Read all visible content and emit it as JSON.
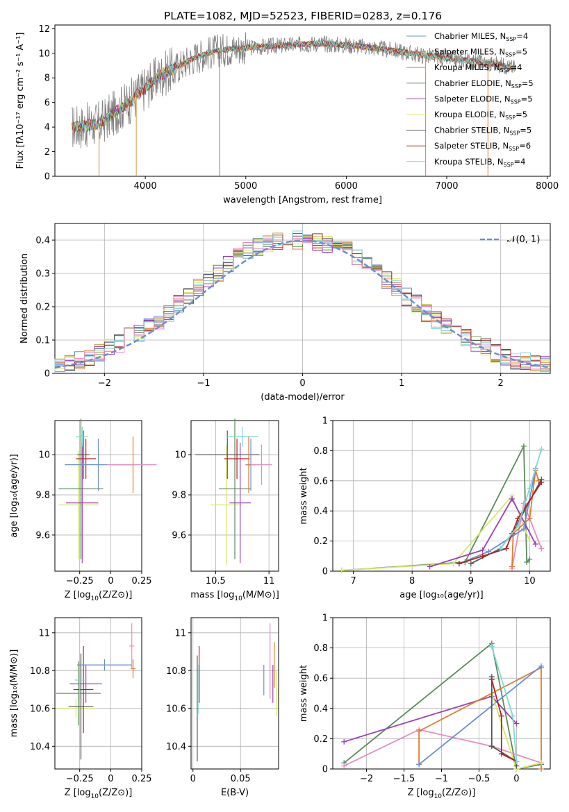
{
  "figure": {
    "title": "PLATE=1082, MJD=52523, FIBERID=0283, z=0.176"
  },
  "chart_data": [
    {
      "id": "spectrum",
      "type": "line",
      "xlabel": "wavelength [Angstrom, rest frame]",
      "ylabel": "Flux [fλ10⁻¹⁷ erg cm⁻² s⁻¹ A⁻¹]",
      "xlim": [
        3100,
        8030
      ],
      "ylim": [
        0,
        12.3
      ],
      "xticks": [
        4000,
        5000,
        6000,
        7000,
        8000
      ],
      "yticks": [
        0,
        2,
        4,
        6,
        8,
        10,
        12
      ],
      "grid": false,
      "legend_position": "top-right",
      "data_color": "#808080",
      "data_x": [
        3270,
        3400,
        3550,
        3700,
        3850,
        4000,
        4150,
        4300,
        4500,
        4700,
        4900,
        5100,
        5300,
        5500,
        5700,
        5900,
        6100,
        6300,
        6500,
        6700,
        6900,
        7100,
        7300,
        7500,
        7690
      ],
      "data_y": [
        4.0,
        4.1,
        4.3,
        5.2,
        6.1,
        7.2,
        8.2,
        8.8,
        9.7,
        10.2,
        10.4,
        10.5,
        10.6,
        10.7,
        10.8,
        10.7,
        10.6,
        10.4,
        10.2,
        9.9,
        9.7,
        9.5,
        9.3,
        9.1,
        8.8
      ],
      "series": [
        {
          "label_main": "Chabrier MILES, N",
          "label_sub": "SSP",
          "label_tail": "=4",
          "color": "#6a8fd0"
        },
        {
          "label_main": "Salpeter MILES, N",
          "label_sub": "SSP",
          "label_tail": "=5",
          "color": "#e07b2f"
        },
        {
          "label_main": "Kroupa MILES, N",
          "label_sub": "SSP",
          "label_tail": "=4",
          "color": "#d49a3a"
        },
        {
          "label_main": "Chabrier ELODIE, N",
          "label_sub": "SSP",
          "label_tail": "=5",
          "color": "#5a8a5a"
        },
        {
          "label_main": "Salpeter ELODIE, N",
          "label_sub": "SSP",
          "label_tail": "=5",
          "color": "#9a3fb8"
        },
        {
          "label_main": "Kroupa ELODIE, N",
          "label_sub": "SSP",
          "label_tail": "=5",
          "color": "#d8e86a"
        },
        {
          "label_main": "Chabrier STELIB, N",
          "label_sub": "SSP",
          "label_tail": "=5",
          "color": "#555555"
        },
        {
          "label_main": "Salpeter STELIB, N",
          "label_sub": "SSP",
          "label_tail": "=6",
          "color": "#b22222"
        },
        {
          "label_main": "Kroupa STELIB, N",
          "label_sub": "SSP",
          "label_tail": "=4",
          "color": "#7fd8d8"
        }
      ]
    },
    {
      "id": "residuals",
      "type": "histogram",
      "xlabel": "(data-model)/error",
      "ylabel": "Normed distribution",
      "xlim": [
        -2.5,
        2.5
      ],
      "ylim": [
        0,
        0.45
      ],
      "xticks": [
        -2,
        -1,
        0,
        1,
        2
      ],
      "yticks": [
        0.0,
        0.1,
        0.2,
        0.3,
        0.4
      ],
      "grid": true,
      "legend_position": "top-right",
      "reference_label": "𝒩(0, 1)",
      "reference_color": "#6a8fd0",
      "bin_width": 0.1,
      "envelope": [
        0.02,
        0.03,
        0.04,
        0.05,
        0.06,
        0.08,
        0.09,
        0.11,
        0.12,
        0.14,
        0.16,
        0.18,
        0.21,
        0.23,
        0.26,
        0.28,
        0.3,
        0.33,
        0.35,
        0.37,
        0.38,
        0.39,
        0.395,
        0.4,
        0.4,
        0.4,
        0.395,
        0.39,
        0.38,
        0.37,
        0.35,
        0.33,
        0.3,
        0.28,
        0.26,
        0.23,
        0.21,
        0.18,
        0.16,
        0.14,
        0.12,
        0.11,
        0.09,
        0.08,
        0.06,
        0.05,
        0.04,
        0.035,
        0.03,
        0.025
      ],
      "series_colors": [
        "#6a8fd0",
        "#e07b2f",
        "#d49a3a",
        "#5a8a5a",
        "#9a3fb8",
        "#d8e86a",
        "#555555",
        "#b22222",
        "#7fd8d8",
        "#e88ac0"
      ]
    },
    {
      "id": "age-vs-Z",
      "type": "errorbar",
      "xlabel_main": "Z [log",
      "xlabel_sub": "10",
      "xlabel_tail": "(Z/Z⊙)]",
      "ylabel": "age  [log₁₀(age/yr)]",
      "xlim": [
        -0.45,
        0.25
      ],
      "ylim": [
        9.42,
        10.17
      ],
      "xticks": [
        -0.25,
        0.0,
        0.25
      ],
      "yticks": [
        9.6,
        9.8,
        10.0
      ],
      "grid": true,
      "points": [
        {
          "x": -0.26,
          "y": 9.75,
          "xerr": 0.16,
          "yerr": 0.27,
          "color": "#d8e86a"
        },
        {
          "x": -0.24,
          "y": 9.83,
          "xerr": 0.18,
          "yerr": 0.35,
          "color": "#5a8a5a"
        },
        {
          "x": -0.23,
          "y": 9.76,
          "xerr": 0.13,
          "yerr": 0.3,
          "color": "#9a3fb8"
        },
        {
          "x": -0.22,
          "y": 10.0,
          "xerr": 0.05,
          "yerr": 0.12,
          "color": "#555555"
        },
        {
          "x": -0.2,
          "y": 9.98,
          "xerr": 0.08,
          "yerr": 0.1,
          "color": "#b22222"
        },
        {
          "x": -0.23,
          "y": 10.09,
          "xerr": 0.05,
          "yerr": 0.05,
          "color": "#7fd8d8"
        },
        {
          "x": -0.1,
          "y": 9.95,
          "xerr": 0.27,
          "yerr": 0.13,
          "color": "#6a8fd0"
        },
        {
          "x": 0.18,
          "y": 9.95,
          "xerr": 0.02,
          "yerr": 0.14,
          "color": "#e07b2f"
        },
        {
          "x": 0.17,
          "y": 9.95,
          "xerr": 0.2,
          "yerr": 0.0,
          "color": "#e88ac0"
        }
      ]
    },
    {
      "id": "age-vs-mass",
      "type": "errorbar",
      "xlabel_main": "mass [log",
      "xlabel_sub": "10",
      "xlabel_tail": "(M/M⊙)]",
      "ylabel": "",
      "xlim": [
        10.27,
        11.09
      ],
      "ylim": [
        9.42,
        10.17
      ],
      "xticks": [
        10.5,
        11.0
      ],
      "yticks": [
        9.6,
        9.8,
        10.0
      ],
      "grid": true,
      "points": [
        {
          "x": 10.6,
          "y": 9.75,
          "xerr": 0.15,
          "yerr": 0.3,
          "color": "#d8e86a"
        },
        {
          "x": 10.68,
          "y": 9.83,
          "xerr": 0.15,
          "yerr": 0.35,
          "color": "#5a8a5a"
        },
        {
          "x": 10.73,
          "y": 9.76,
          "xerr": 0.1,
          "yerr": 0.3,
          "color": "#9a3fb8"
        },
        {
          "x": 10.61,
          "y": 10.0,
          "xerr": 0.3,
          "yerr": 0.12,
          "color": "#555555"
        },
        {
          "x": 10.7,
          "y": 9.98,
          "xerr": 0.12,
          "yerr": 0.1,
          "color": "#b22222"
        },
        {
          "x": 10.75,
          "y": 10.09,
          "xerr": 0.15,
          "yerr": 0.05,
          "color": "#7fd8d8"
        },
        {
          "x": 10.83,
          "y": 9.95,
          "xerr": 0.05,
          "yerr": 0.13,
          "color": "#6a8fd0"
        },
        {
          "x": 10.81,
          "y": 9.95,
          "xerr": 0.02,
          "yerr": 0.14,
          "color": "#e07b2f"
        },
        {
          "x": 10.93,
          "y": 9.95,
          "xerr": 0.1,
          "yerr": 0.1,
          "color": "#e88ac0"
        }
      ]
    },
    {
      "id": "weight-vs-age",
      "type": "line",
      "xlabel": "age  [log₁₀(age/yr)]",
      "ylabel": "mass weight",
      "xlim": [
        6.65,
        10.35
      ],
      "ylim": [
        0,
        1.0
      ],
      "xticks": [
        7,
        8,
        9,
        10
      ],
      "yticks": [
        0.0,
        0.2,
        0.4,
        0.6,
        0.8,
        1.0
      ],
      "grid": true,
      "series": [
        {
          "color": "#5a8a5a",
          "x": [
            6.8,
            8.9,
            9.9,
            9.95,
            10.0
          ],
          "y": [
            0.005,
            0.06,
            0.83,
            0.06,
            0.08
          ]
        },
        {
          "color": "#d8e86a",
          "x": [
            6.8,
            8.7,
            9.7,
            10.0
          ],
          "y": [
            0.005,
            0.05,
            0.5,
            0.2
          ]
        },
        {
          "color": "#9a3fb8",
          "x": [
            8.3,
            9.2,
            9.7,
            10.1
          ],
          "y": [
            0.03,
            0.14,
            0.48,
            0.18
          ]
        },
        {
          "color": "#e88ac0",
          "x": [
            9.7,
            9.9,
            10.2
          ],
          "y": [
            0.02,
            0.45,
            0.15
          ]
        },
        {
          "color": "#e07b2f",
          "x": [
            9.7,
            9.72,
            10.0,
            10.1,
            10.15
          ],
          "y": [
            0.03,
            0.25,
            0.35,
            0.67,
            0.6
          ]
        },
        {
          "color": "#6a8fd0",
          "x": [
            8.8,
            9.3,
            9.9,
            10.1
          ],
          "y": [
            0.05,
            0.13,
            0.28,
            0.68
          ]
        },
        {
          "color": "#555555",
          "x": [
            9.0,
            9.5,
            9.7,
            10.2
          ],
          "y": [
            0.05,
            0.15,
            0.25,
            0.61
          ]
        },
        {
          "color": "#b22222",
          "x": [
            8.8,
            9.2,
            9.6,
            9.8,
            10.2
          ],
          "y": [
            0.05,
            0.1,
            0.15,
            0.35,
            0.59
          ]
        },
        {
          "color": "#7fd8d8",
          "x": [
            9.5,
            9.8,
            10.0,
            10.2
          ],
          "y": [
            0.15,
            0.3,
            0.55,
            0.81
          ]
        }
      ]
    },
    {
      "id": "mass-vs-Z",
      "type": "errorbar",
      "xlabel_main": "Z [log",
      "xlabel_sub": "10",
      "xlabel_tail": "(Z/Z⊙)]",
      "ylabel": "mass [log₁₀(M/M⊙)]",
      "xlim": [
        -0.45,
        0.25
      ],
      "ylim": [
        10.28,
        11.08
      ],
      "xticks": [
        -0.25,
        0.0,
        0.25
      ],
      "yticks": [
        10.4,
        10.6,
        10.8,
        11.0
      ],
      "grid": true,
      "points": [
        {
          "x": -0.28,
          "y": 10.6,
          "xerr": 0.16,
          "yerr": 0.05,
          "color": "#d8e86a"
        },
        {
          "x": -0.26,
          "y": 10.68,
          "xerr": 0.18,
          "yerr": 0.17,
          "color": "#5a8a5a"
        },
        {
          "x": -0.2,
          "y": 10.73,
          "xerr": 0.13,
          "yerr": 0.1,
          "color": "#9a3fb8"
        },
        {
          "x": -0.24,
          "y": 10.61,
          "xerr": 0.1,
          "yerr": 0.28,
          "color": "#555555"
        },
        {
          "x": -0.22,
          "y": 10.7,
          "xerr": 0.08,
          "yerr": 0.23,
          "color": "#b22222"
        },
        {
          "x": -0.25,
          "y": 10.75,
          "xerr": 0.04,
          "yerr": 0.1,
          "color": "#7fd8d8"
        },
        {
          "x": -0.05,
          "y": 10.83,
          "xerr": 0.22,
          "yerr": 0.03,
          "color": "#6a8fd0"
        },
        {
          "x": 0.18,
          "y": 10.81,
          "xerr": 0.02,
          "yerr": 0.05,
          "color": "#e07b2f"
        },
        {
          "x": 0.17,
          "y": 10.93,
          "xerr": 0.02,
          "yerr": 0.12,
          "color": "#e88ac0"
        }
      ]
    },
    {
      "id": "mass-vs-ebv",
      "type": "errorbar",
      "xlabel": "E(B-V)",
      "ylabel": "",
      "xlim": [
        -0.002,
        0.09
      ],
      "ylim": [
        10.28,
        11.08
      ],
      "xticks": [
        0.0,
        0.05
      ],
      "yticks": [
        10.4,
        10.6,
        10.8,
        11.0
      ],
      "grid": true,
      "points": [
        {
          "x": 0.0045,
          "y": 10.6,
          "xerr": 0.0,
          "yerr": 0.28,
          "color": "#555555"
        },
        {
          "x": 0.006,
          "y": 10.7,
          "xerr": 0.0,
          "yerr": 0.13,
          "color": "#7fd8d8"
        },
        {
          "x": 0.0065,
          "y": 10.78,
          "xerr": 0.0,
          "yerr": 0.15,
          "color": "#b22222"
        },
        {
          "x": 0.0745,
          "y": 10.75,
          "xerr": 0.0,
          "yerr": 0.08,
          "color": "#6a8fd0"
        },
        {
          "x": 0.081,
          "y": 10.85,
          "xerr": 0.0,
          "yerr": 0.2,
          "color": "#e88ac0"
        },
        {
          "x": 0.0855,
          "y": 10.83,
          "xerr": 0.0,
          "yerr": 0.12,
          "color": "#e07b2f"
        },
        {
          "x": 0.084,
          "y": 10.73,
          "xerr": 0.0,
          "yerr": 0.1,
          "color": "#9a3fb8"
        },
        {
          "x": 0.088,
          "y": 10.68,
          "xerr": 0.0,
          "yerr": 0.12,
          "color": "#d8e86a"
        }
      ]
    },
    {
      "id": "weight-vs-Z",
      "type": "line",
      "xlabel_main": "Z [log",
      "xlabel_sub": "10",
      "xlabel_tail": "(Z/Z⊙)]",
      "ylabel": "mass weight",
      "xlim": [
        -2.45,
        0.45
      ],
      "ylim": [
        0,
        1.0
      ],
      "xticks": [
        -2.0,
        -1.5,
        -1.0,
        -0.5,
        0.0
      ],
      "yticks": [
        0.0,
        0.2,
        0.4,
        0.6,
        0.8,
        1.0
      ],
      "grid": true,
      "series": [
        {
          "color": "#5a8a5a",
          "x": [
            -2.3,
            -0.33,
            0.0,
            0.33
          ],
          "y": [
            0.04,
            0.83,
            0.0,
            0.03
          ]
        },
        {
          "color": "#9a3fb8",
          "x": [
            -2.3,
            -0.33,
            0.0
          ],
          "y": [
            0.18,
            0.48,
            0.3
          ]
        },
        {
          "color": "#e88ac0",
          "x": [
            -2.3,
            -1.3,
            -0.33,
            0.33
          ],
          "y": [
            0.02,
            0.26,
            0.15,
            0.04
          ]
        },
        {
          "color": "#e07b2f",
          "x": [
            -1.3,
            -1.3,
            0.33,
            0.33
          ],
          "y": [
            0.03,
            0.25,
            0.67,
            0.0
          ]
        },
        {
          "color": "#6a8fd0",
          "x": [
            -1.3,
            0.33
          ],
          "y": [
            0.03,
            0.68
          ]
        },
        {
          "color": "#d8e86a",
          "x": [
            -0.33,
            0.0,
            0.33
          ],
          "y": [
            0.5,
            0.0,
            0.04
          ]
        },
        {
          "color": "#555555",
          "x": [
            -0.33,
            -0.33,
            0.0,
            0.0
          ],
          "y": [
            0.61,
            0.15,
            0.05,
            0.02
          ]
        },
        {
          "color": "#b22222",
          "x": [
            -0.33,
            -0.2,
            -0.2,
            0.0
          ],
          "y": [
            0.59,
            0.35,
            0.1,
            0.05
          ]
        },
        {
          "color": "#7fd8d8",
          "x": [
            -0.33,
            -0.05,
            0.0
          ],
          "y": [
            0.81,
            0.35,
            0.05
          ]
        }
      ]
    }
  ]
}
